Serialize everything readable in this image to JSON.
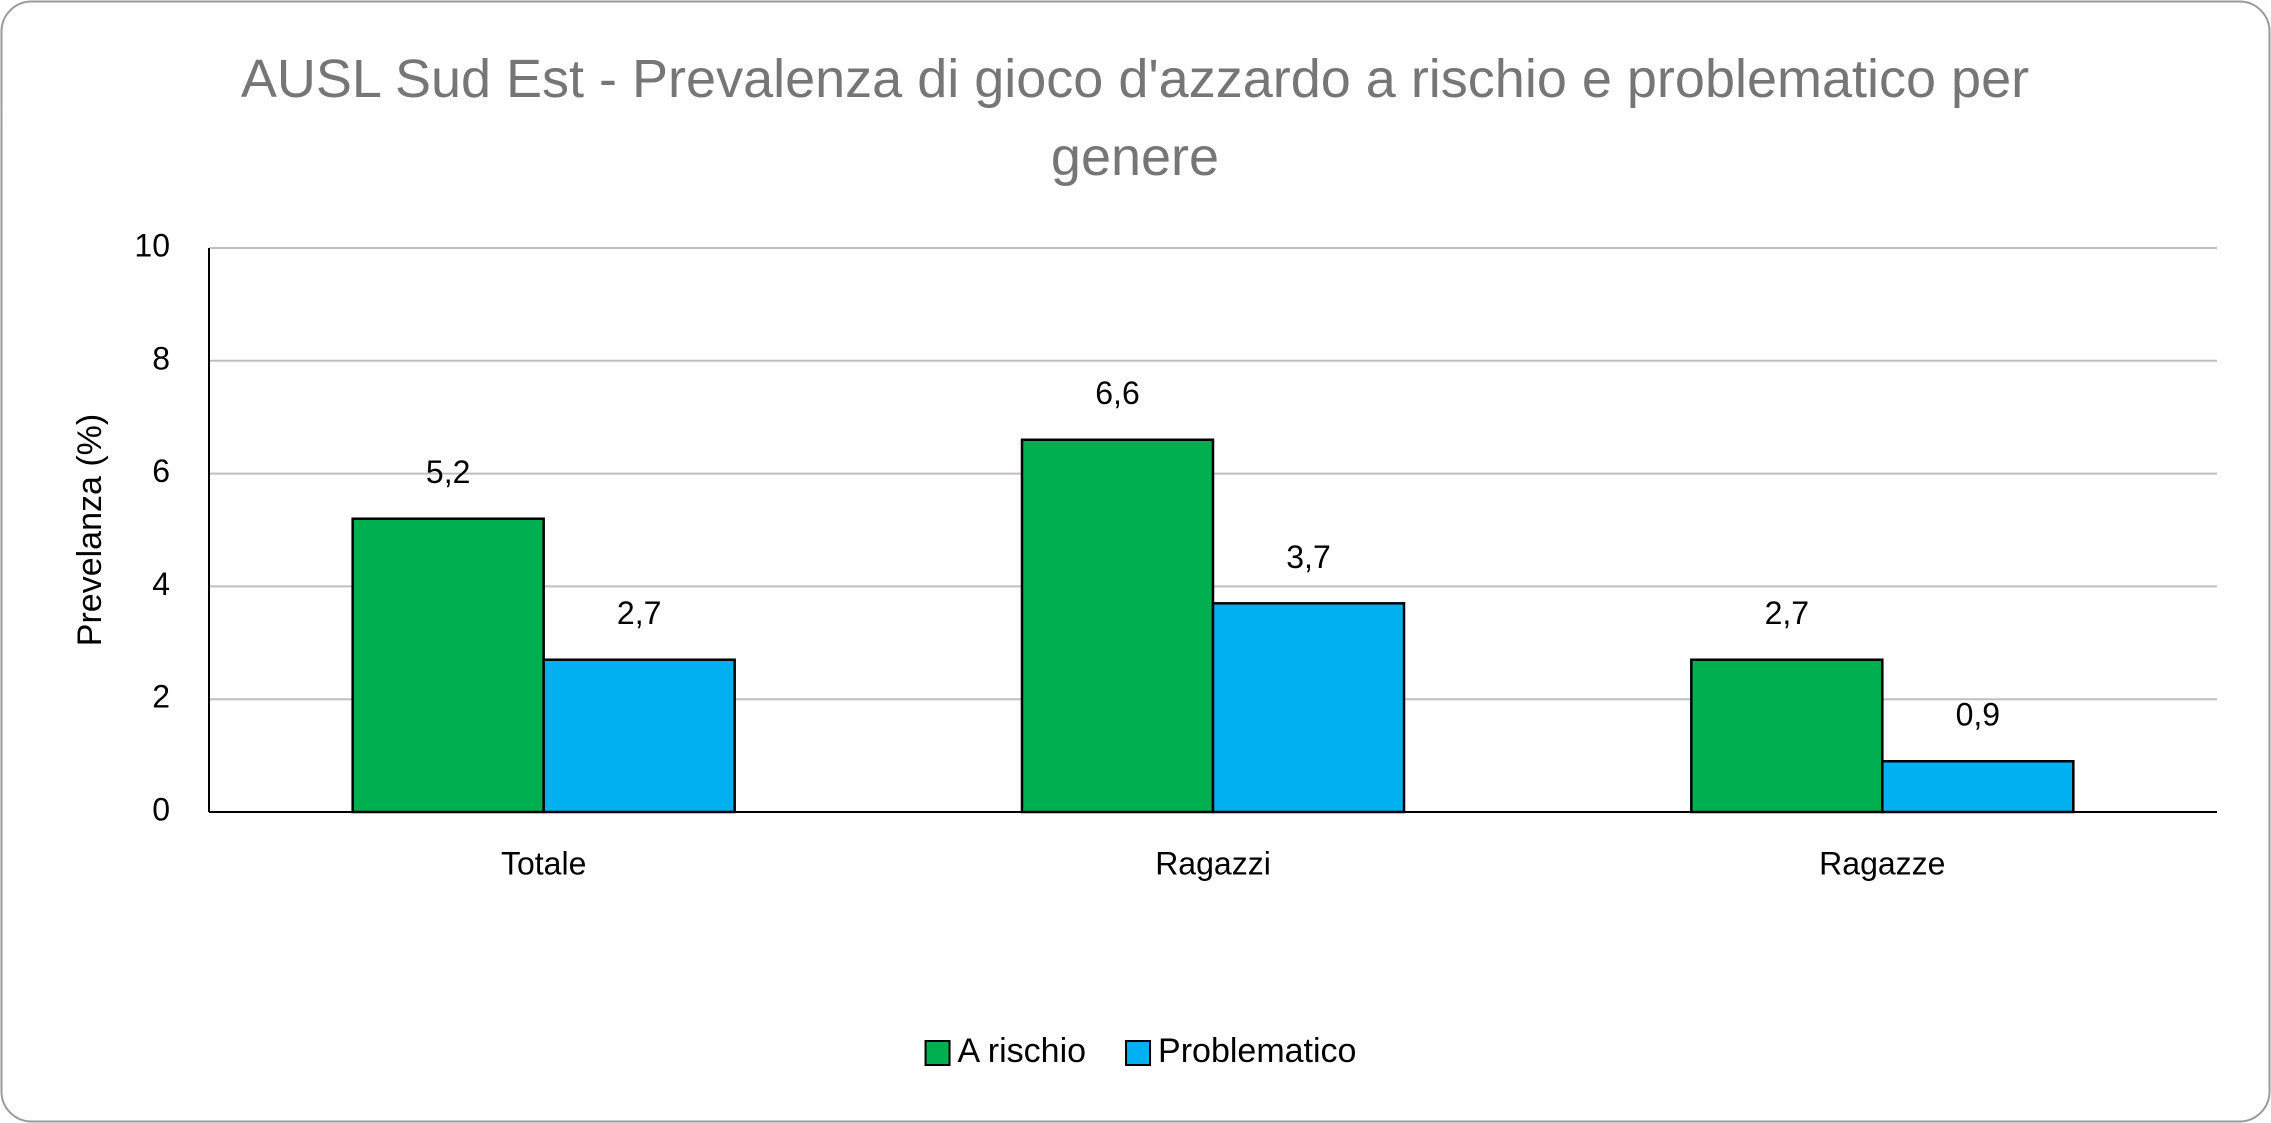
{
  "chart_data": {
    "type": "bar",
    "title": "AUSL Sud Est - Prevalenza di gioco d'azzardo a rischio e problematico per genere",
    "y_label": "Prevelanza (%)",
    "categories": [
      "Totale",
      "Ragazzi",
      "Ragazze"
    ],
    "series": [
      {
        "name": "A rischio",
        "color": "#00b050",
        "values": [
          5.2,
          6.6,
          2.7
        ],
        "value_labels": [
          "5,2",
          "6,6",
          "2,7"
        ]
      },
      {
        "name": "Problematico",
        "color": "#00b0f0",
        "values": [
          2.7,
          3.7,
          0.9
        ],
        "value_labels": [
          "2,7",
          "3,7",
          "0,9"
        ]
      }
    ],
    "ylim": [
      0,
      10
    ],
    "yticks": [
      0,
      2,
      4,
      6,
      8,
      10
    ],
    "grid": true,
    "legend": "bottom"
  }
}
